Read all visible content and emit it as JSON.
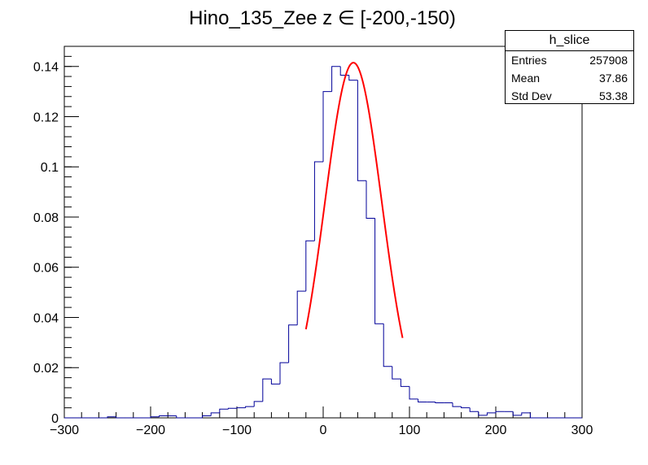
{
  "chart_data": {
    "type": "bar",
    "title": "Hino_135_Zee z  ∈ [-200,-150)",
    "xlabel": "",
    "ylabel": "",
    "xlim": [
      -300,
      300
    ],
    "ylim": [
      0,
      0.148
    ],
    "x_ticks": [
      -300,
      -200,
      -100,
      0,
      100,
      200,
      300
    ],
    "x_tick_labels": [
      "−300",
      "−200",
      "−100",
      "0",
      "100",
      "200",
      "300"
    ],
    "y_ticks": [
      0,
      0.02,
      0.04,
      0.06,
      0.08,
      0.1,
      0.12,
      0.14
    ],
    "y_tick_labels": [
      "0",
      "0.02",
      "0.04",
      "0.06",
      "0.08",
      "0.1",
      "0.12",
      "0.14"
    ],
    "grid": false,
    "bin_edges": [
      -300,
      -290,
      -280,
      -270,
      -260,
      -250,
      -240,
      -230,
      -220,
      -210,
      -200,
      -190,
      -180,
      -170,
      -160,
      -150,
      -140,
      -130,
      -120,
      -110,
      -100,
      -90,
      -80,
      -70,
      -60,
      -50,
      -40,
      -30,
      -20,
      -10,
      0,
      10,
      20,
      30,
      40,
      50,
      60,
      70,
      80,
      90,
      100,
      110,
      120,
      130,
      140,
      150,
      160,
      170,
      180,
      190,
      200,
      210,
      220,
      230,
      240,
      250,
      260,
      270,
      280,
      290,
      300
    ],
    "series": [
      {
        "values": [
          0,
          0,
          0,
          0,
          0,
          0.0004,
          0,
          0,
          0,
          0,
          0.0004,
          0.0008,
          0.0008,
          0,
          0,
          0,
          0.0008,
          0.002,
          0.0035,
          0.0038,
          0.004,
          0.0045,
          0.0065,
          0.0155,
          0.0135,
          0.022,
          0.037,
          0.0505,
          0.0705,
          0.102,
          0.13,
          0.14,
          0.1365,
          0.1345,
          0.0945,
          0.0795,
          0.0375,
          0.0205,
          0.0155,
          0.0125,
          0.0075,
          0.0063,
          0.0063,
          0.006,
          0.006,
          0.0045,
          0.004,
          0.0025,
          0.001,
          0.002,
          0.0025,
          0.0025,
          0.001,
          0.002,
          0,
          0,
          0,
          0,
          0,
          0
        ],
        "color": "#000099"
      },
      {
        "type": "line",
        "function": "gaussian",
        "x_range": [
          -20,
          92
        ],
        "amplitude": 0.1415,
        "mean": 35,
        "sigma": 33,
        "color": "#ff0000"
      }
    ]
  },
  "stats": {
    "title": "h_slice",
    "rows": [
      {
        "label": "Entries",
        "value": "257908"
      },
      {
        "label": "Mean",
        "value": "37.86"
      },
      {
        "label": "Std Dev",
        "value": "53.38"
      }
    ]
  }
}
